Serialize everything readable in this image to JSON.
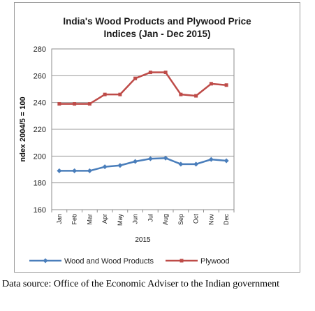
{
  "chart_data": {
    "type": "line",
    "title": "India's Wood Products and Plywood Price Indices (Jan - Dec 2015)",
    "title_lines": [
      "India's Wood Products and Plywood Price",
      "Indices (Jan - Dec 2015)"
    ],
    "ylabel": "ndex 2004/5 = 100",
    "xgroup_label": "2015",
    "ylim": [
      160,
      280
    ],
    "yticks": [
      160,
      180,
      200,
      220,
      240,
      260,
      280
    ],
    "grid": true,
    "legend_position": "bottom",
    "categories": [
      "Jan",
      "Feb",
      "Mar",
      "Apr",
      "May",
      "Jun",
      "Jul",
      "Aug",
      "Sep",
      "Oct",
      "Nov",
      "Dec"
    ],
    "series": [
      {
        "name": "Wood and Wood Products",
        "color": "#4a7ebb",
        "marker": "diamond",
        "values": [
          189.0,
          189.0,
          189.0,
          192.0,
          193.0,
          196.0,
          198.0,
          198.5,
          194.0,
          194.0,
          197.5,
          196.5
        ]
      },
      {
        "name": "Plywood",
        "color": "#be4b48",
        "marker": "square",
        "values": [
          239.0,
          239.0,
          239.0,
          246.0,
          246.0,
          258.0,
          262.5,
          262.5,
          246.0,
          245.0,
          254.0,
          253.0
        ]
      }
    ]
  },
  "footnote": "Data source: Office of the Economic Adviser to the Indian government"
}
